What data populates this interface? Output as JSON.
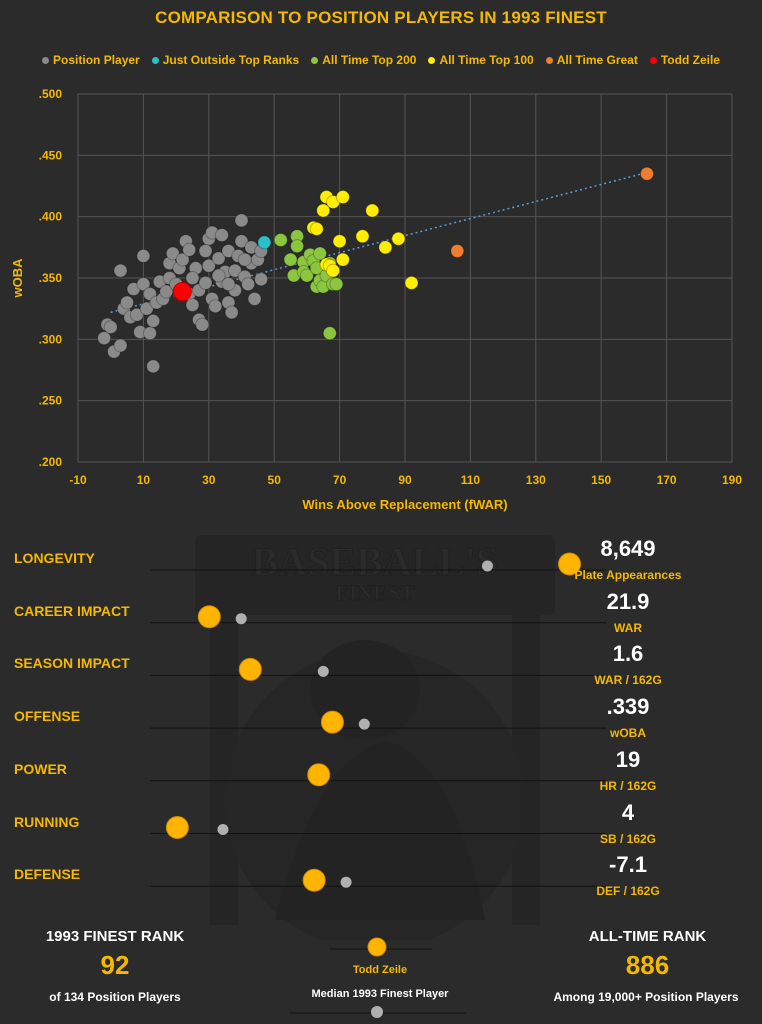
{
  "title": "COMPARISON TO POSITION PLAYERS IN 1993 FINEST",
  "legend": [
    {
      "label": "Position Player",
      "color": "#8a8a8a"
    },
    {
      "label": "Just Outside Top Ranks",
      "color": "#2bbfc9"
    },
    {
      "label": "All Time Top 200",
      "color": "#8cc63f"
    },
    {
      "label": "All Time Top 100",
      "color": "#ffee00"
    },
    {
      "label": "All Time Great",
      "color": "#ed7d31"
    },
    {
      "label": "Todd Zeile",
      "color": "#ff0000"
    }
  ],
  "chart_data": {
    "type": "scatter",
    "xlabel": "Wins Above Replacement (fWAR)",
    "ylabel": "wOBA",
    "xlim": [
      -10,
      190
    ],
    "ylim": [
      0.2,
      0.5
    ],
    "xticks": [
      "-10",
      "10",
      "30",
      "50",
      "70",
      "90",
      "110",
      "130",
      "150",
      "170",
      "190"
    ],
    "yticks": [
      ".200",
      ".250",
      ".300",
      ".350",
      ".400",
      ".450",
      ".500"
    ],
    "grid": true,
    "trendline": {
      "x": [
        0,
        164
      ],
      "y": [
        0.322,
        0.436
      ]
    },
    "series": [
      {
        "name": "Position Player",
        "color": "#8a8a8a",
        "points": [
          [
            -2,
            0.301
          ],
          [
            -1,
            0.312
          ],
          [
            0,
            0.31
          ],
          [
            1,
            0.29
          ],
          [
            3,
            0.295
          ],
          [
            3,
            0.356
          ],
          [
            4,
            0.325
          ],
          [
            5,
            0.33
          ],
          [
            6,
            0.318
          ],
          [
            7,
            0.341
          ],
          [
            8,
            0.32
          ],
          [
            9,
            0.306
          ],
          [
            10,
            0.345
          ],
          [
            10,
            0.368
          ],
          [
            11,
            0.325
          ],
          [
            12,
            0.337
          ],
          [
            12,
            0.305
          ],
          [
            13,
            0.278
          ],
          [
            13,
            0.315
          ],
          [
            14,
            0.33
          ],
          [
            15,
            0.347
          ],
          [
            16,
            0.333
          ],
          [
            17,
            0.339
          ],
          [
            18,
            0.35
          ],
          [
            18,
            0.362
          ],
          [
            19,
            0.37
          ],
          [
            20,
            0.345
          ],
          [
            21,
            0.358
          ],
          [
            22,
            0.365
          ],
          [
            23,
            0.38
          ],
          [
            24,
            0.373
          ],
          [
            24,
            0.337
          ],
          [
            25,
            0.328
          ],
          [
            26,
            0.358
          ],
          [
            27,
            0.34
          ],
          [
            27,
            0.316
          ],
          [
            28,
            0.312
          ],
          [
            29,
            0.346
          ],
          [
            30,
            0.382
          ],
          [
            30,
            0.36
          ],
          [
            31,
            0.387
          ],
          [
            31,
            0.333
          ],
          [
            32,
            0.327
          ],
          [
            33,
            0.366
          ],
          [
            34,
            0.347
          ],
          [
            35,
            0.355
          ],
          [
            36,
            0.33
          ],
          [
            36,
            0.372
          ],
          [
            37,
            0.322
          ],
          [
            38,
            0.34
          ],
          [
            38,
            0.356
          ],
          [
            39,
            0.368
          ],
          [
            40,
            0.38
          ],
          [
            40,
            0.397
          ],
          [
            41,
            0.351
          ],
          [
            42,
            0.345
          ],
          [
            43,
            0.375
          ],
          [
            43,
            0.362
          ],
          [
            44,
            0.333
          ],
          [
            45,
            0.365
          ],
          [
            46,
            0.349
          ],
          [
            46,
            0.372
          ],
          [
            34,
            0.385
          ],
          [
            25,
            0.35
          ],
          [
            33,
            0.352
          ],
          [
            36,
            0.345
          ],
          [
            41,
            0.365
          ],
          [
            29,
            0.372
          ]
        ]
      },
      {
        "name": "Just Outside Top Ranks",
        "color": "#2bbfc9",
        "points": [
          [
            47,
            0.379
          ]
        ]
      },
      {
        "name": "All Time Top 200",
        "color": "#8cc63f",
        "points": [
          [
            52,
            0.381
          ],
          [
            55,
            0.365
          ],
          [
            56,
            0.352
          ],
          [
            57,
            0.384
          ],
          [
            57,
            0.376
          ],
          [
            59,
            0.363
          ],
          [
            59,
            0.355
          ],
          [
            60,
            0.352
          ],
          [
            61,
            0.369
          ],
          [
            62,
            0.364
          ],
          [
            63,
            0.343
          ],
          [
            63,
            0.358
          ],
          [
            64,
            0.348
          ],
          [
            64,
            0.37
          ],
          [
            65,
            0.343
          ],
          [
            66,
            0.352
          ],
          [
            67,
            0.362
          ],
          [
            67,
            0.305
          ],
          [
            68,
            0.345
          ],
          [
            69,
            0.345
          ]
        ]
      },
      {
        "name": "All Time Top 100",
        "color": "#ffee00",
        "points": [
          [
            62,
            0.391
          ],
          [
            63,
            0.39
          ],
          [
            65,
            0.405
          ],
          [
            66,
            0.416
          ],
          [
            66,
            0.361
          ],
          [
            67,
            0.36
          ],
          [
            68,
            0.412
          ],
          [
            68,
            0.356
          ],
          [
            70,
            0.38
          ],
          [
            71,
            0.365
          ],
          [
            71,
            0.416
          ],
          [
            77,
            0.384
          ],
          [
            80,
            0.405
          ],
          [
            84,
            0.375
          ],
          [
            88,
            0.382
          ],
          [
            92,
            0.346
          ]
        ]
      },
      {
        "name": "All Time Great",
        "color": "#ed7d31",
        "points": [
          [
            106,
            0.372
          ],
          [
            164,
            0.435
          ]
        ]
      },
      {
        "name": "Todd Zeile",
        "color": "#ff0000",
        "points": [
          [
            21.9,
            0.339
          ]
        ]
      }
    ]
  },
  "metrics": [
    {
      "label": "LONGEVITY",
      "player": 0.92,
      "median": 0.74,
      "value": "8,649",
      "unit": "Plate Appearances"
    },
    {
      "label": "CAREER IMPACT",
      "player": 0.13,
      "median": 0.2,
      "value": "21.9",
      "unit": "WAR"
    },
    {
      "label": "SEASON IMPACT",
      "player": 0.22,
      "median": 0.38,
      "value": "1.6",
      "unit": "WAR / 162G"
    },
    {
      "label": "OFFENSE",
      "player": 0.4,
      "median": 0.47,
      "value": ".339",
      "unit": "wOBA"
    },
    {
      "label": "POWER",
      "player": 0.37,
      "median": 0.37,
      "value": "19",
      "unit": "HR / 162G"
    },
    {
      "label": "RUNNING",
      "player": 0.06,
      "median": 0.16,
      "value": "4",
      "unit": "SB / 162G"
    },
    {
      "label": "DEFENSE",
      "player": 0.36,
      "median": 0.43,
      "value": "-7.1",
      "unit": "DEF / 162G"
    }
  ],
  "footer": {
    "finest_rank_label": "1993 FINEST RANK",
    "finest_rank": "92",
    "finest_rank_sub": "of 134 Position Players",
    "key_player": "Todd Zeile",
    "key_median": "Median 1993 Finest Player",
    "alltime_rank_label": "ALL-TIME RANK",
    "alltime_rank": "886",
    "alltime_rank_sub": "Among 19,000+ Position Players"
  },
  "colors": {
    "accent": "#f5b800",
    "player_dot": "#ffb400",
    "median_dot": "#b0b0b0"
  }
}
